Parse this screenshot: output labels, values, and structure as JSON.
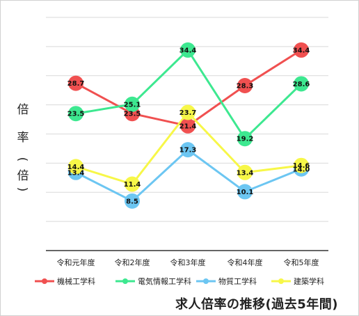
{
  "chart_data": {
    "type": "line",
    "title": "求人倍率の推移(過去5年間)",
    "ylabel": "倍率(倍)",
    "xlabel": "",
    "categories": [
      "令和元年度",
      "令和2年度",
      "令和3年度",
      "令和4年度",
      "令和5年度"
    ],
    "ylim": [
      0,
      40
    ],
    "grid": true,
    "legend": "bottom",
    "series": [
      {
        "name": "機械工学科",
        "color": "#f05050",
        "values": [
          28.7,
          23.5,
          21.4,
          28.3,
          34.4
        ]
      },
      {
        "name": "電気情報工学科",
        "color": "#3de890",
        "values": [
          23.5,
          25.1,
          34.4,
          19.2,
          28.6
        ]
      },
      {
        "name": "物質工学科",
        "color": "#6cc6f2",
        "values": [
          13.4,
          8.5,
          17.3,
          10.1,
          14.0
        ]
      },
      {
        "name": "建築学科",
        "color": "#f7f748",
        "values": [
          14.4,
          11.4,
          23.7,
          13.4,
          14.6
        ]
      }
    ]
  }
}
